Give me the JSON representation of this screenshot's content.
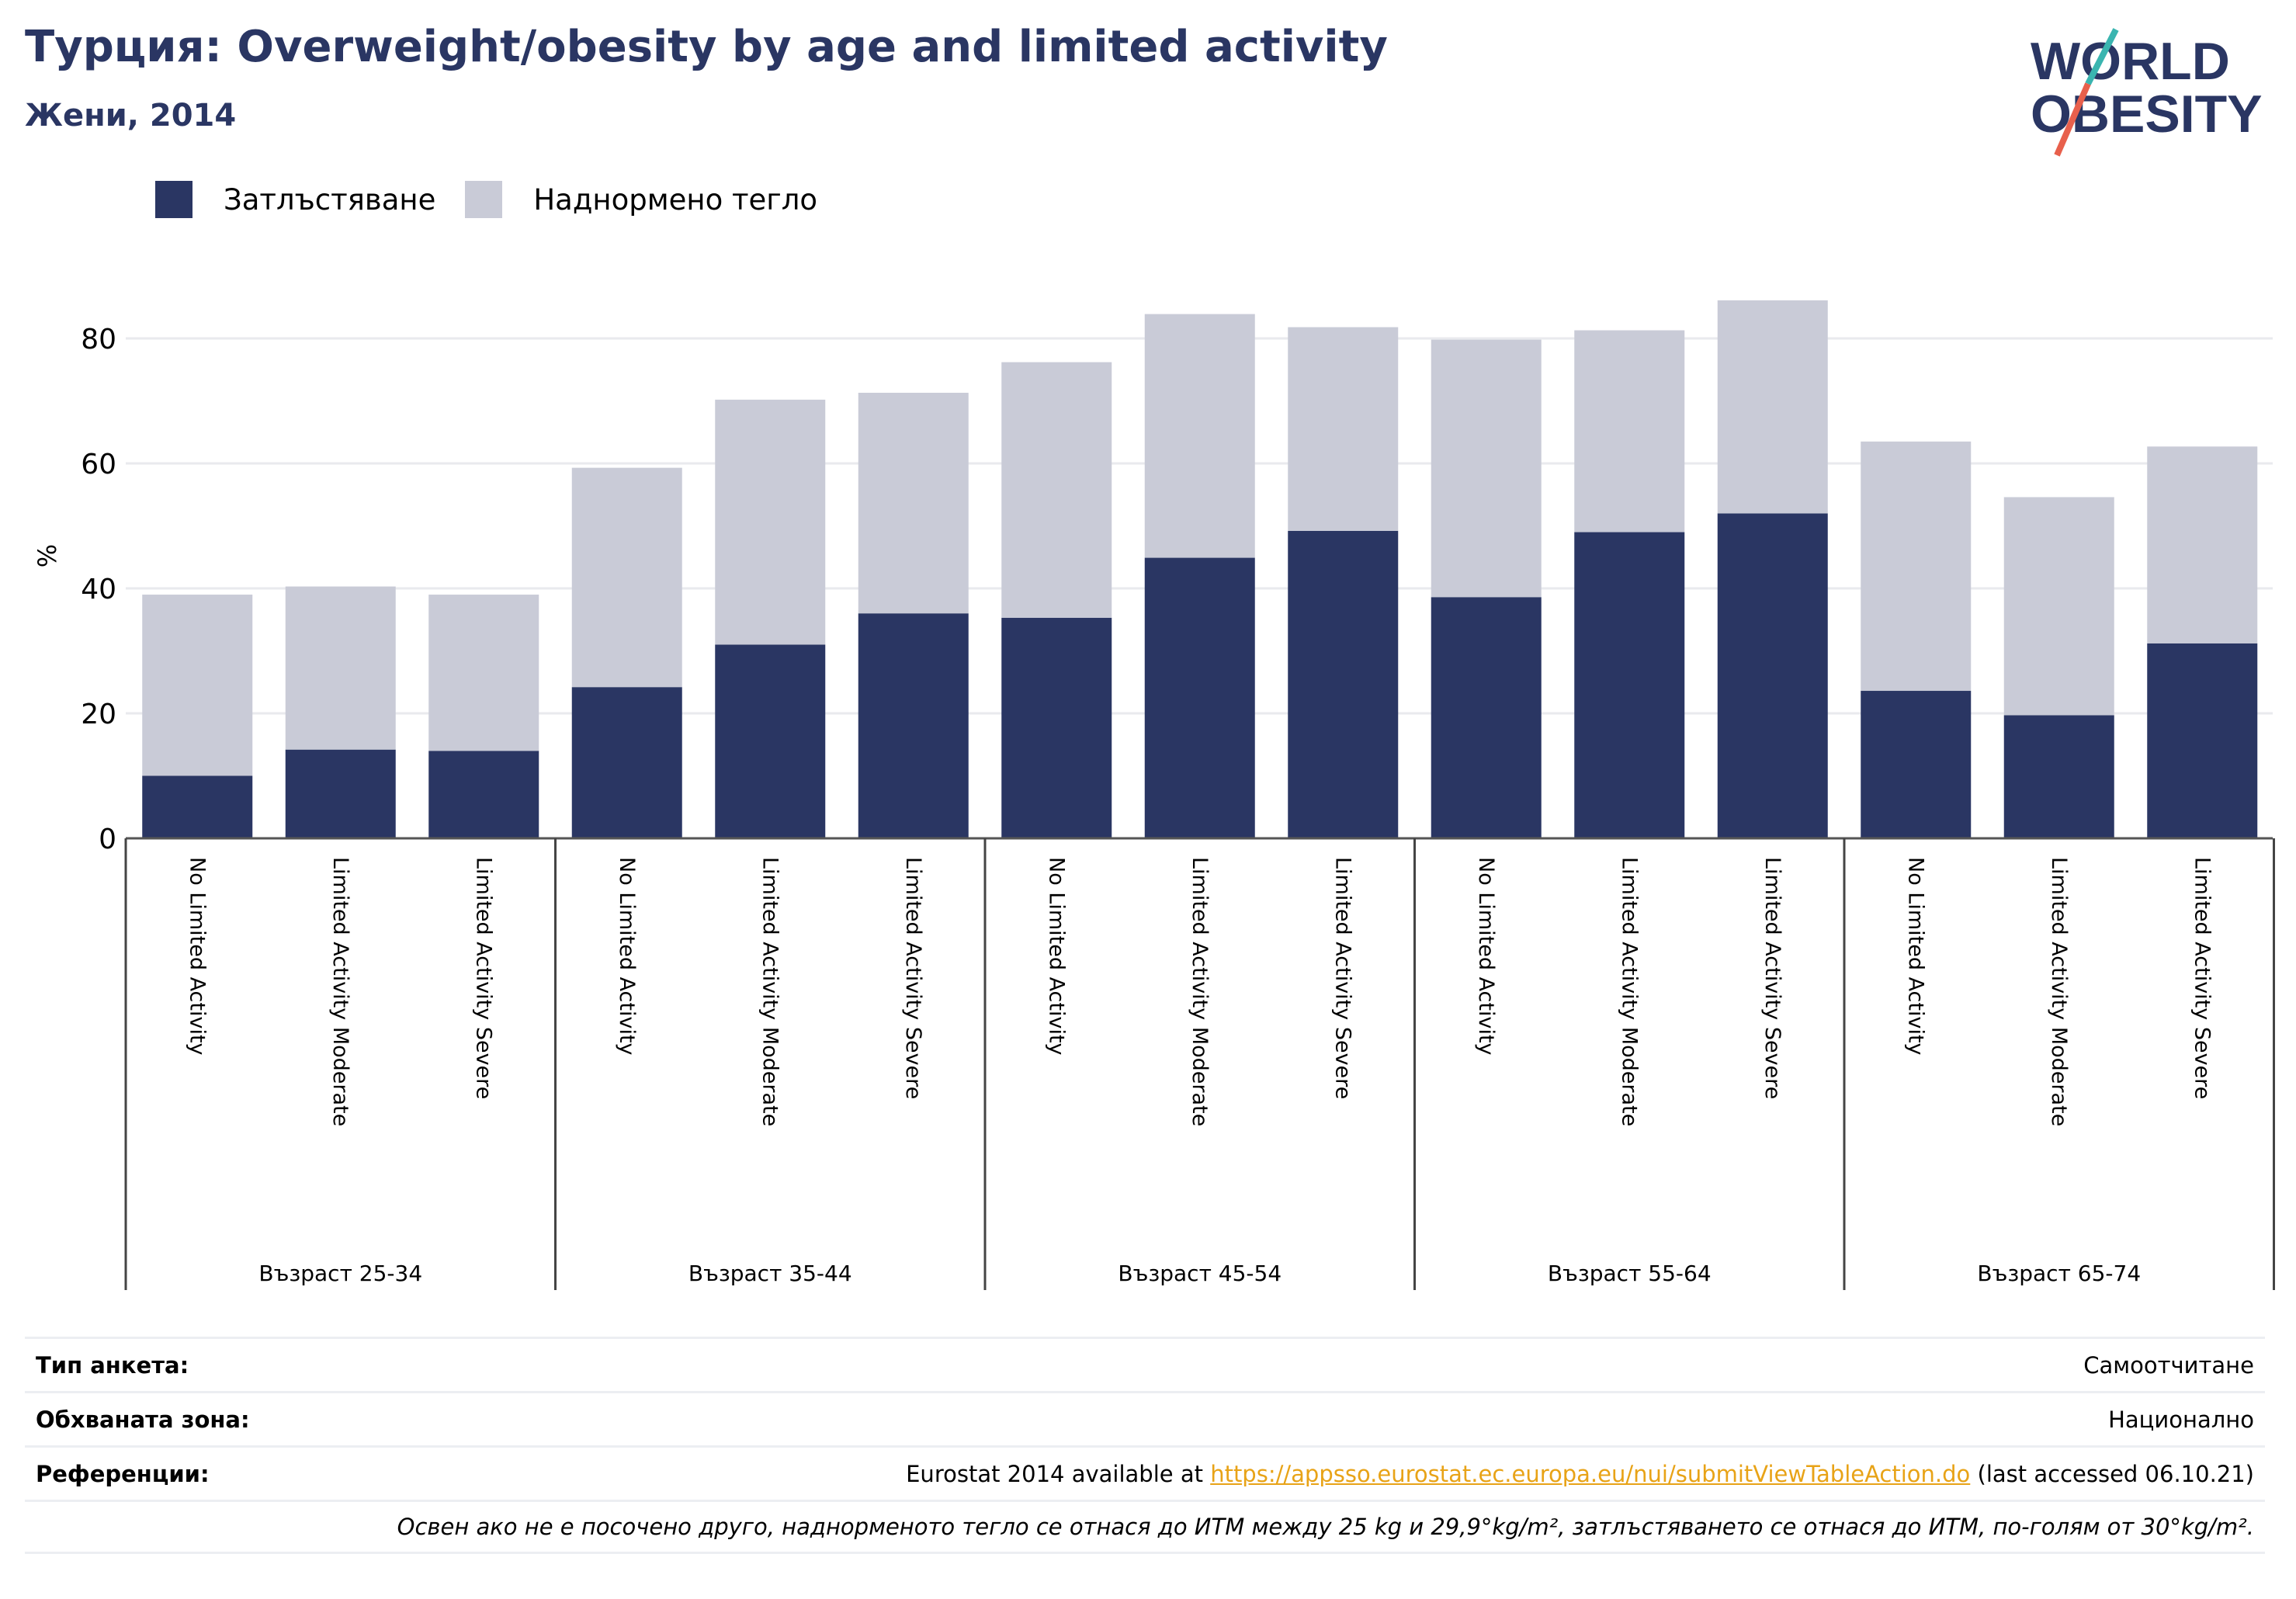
{
  "header": {
    "title": "Турция: Overweight/obesity by age and limited activity",
    "subtitle": "Жени, 2014"
  },
  "logo": {
    "line1": "WORLD",
    "line2": "OBESITY",
    "colors": {
      "text": "#2a3663",
      "slash_teal": "#3ab5b0",
      "slash_red": "#e8604c"
    }
  },
  "legend": [
    {
      "label": "Затлъстяване",
      "color": "#2a3663"
    },
    {
      "label": "Наднормено тегло",
      "color": "#c9cbd7"
    }
  ],
  "chart_data": {
    "type": "bar",
    "stacked": true,
    "ylabel": "%",
    "ylim": [
      0,
      90
    ],
    "yticks": [
      0,
      20,
      40,
      60,
      80
    ],
    "grid": true,
    "categories": [
      "No Limited Activity",
      "Limited Activity Moderate",
      "Limited Activity Severe",
      "No Limited Activity",
      "Limited Activity Moderate",
      "Limited Activity Severe",
      "No Limited Activity",
      "Limited Activity Moderate",
      "Limited Activity Severe",
      "No Limited Activity",
      "Limited Activity Moderate",
      "Limited Activity Severe",
      "No Limited Activity",
      "Limited Activity Moderate",
      "Limited Activity Severe"
    ],
    "groups": [
      {
        "label": "Възраст 25-34",
        "count": 3
      },
      {
        "label": "Възраст 35-44",
        "count": 3
      },
      {
        "label": "Възраст 45-54",
        "count": 3
      },
      {
        "label": "Възраст 55-64",
        "count": 3
      },
      {
        "label": "Възраст 65-74",
        "count": 3
      }
    ],
    "series": [
      {
        "name": "Затлъстяване",
        "color": "#2a3663",
        "values": [
          10.0,
          14.2,
          14.0,
          24.2,
          31.0,
          36.0,
          35.3,
          44.9,
          49.2,
          38.6,
          49.0,
          52.0,
          23.6,
          19.7,
          31.2
        ]
      },
      {
        "name": "Наднормено тегло",
        "color": "#c9cbd7",
        "values": [
          29.0,
          26.1,
          25.0,
          35.1,
          39.2,
          35.3,
          40.9,
          39.0,
          32.6,
          41.2,
          32.3,
          34.1,
          39.9,
          34.9,
          31.5
        ]
      }
    ]
  },
  "info": {
    "survey_type": {
      "label": "Тип анкета:",
      "value": "Самоотчитане"
    },
    "coverage": {
      "label": "Обхваната зона:",
      "value": "Национално"
    },
    "references": {
      "label": "Референции:",
      "prefix": "Eurostat 2014 available at ",
      "link": "https://appsso.eurostat.ec.europa.eu/nui/submitViewTableAction.do",
      "suffix": " (last accessed 06.10.21)"
    },
    "note": "Освен ако не е посочено друго, наднорменото тегло се отнася до ИТМ между 25 kg и 29,9°kg/m², затлъстяването се отнася до ИТМ, по-голям от 30°kg/m²."
  }
}
